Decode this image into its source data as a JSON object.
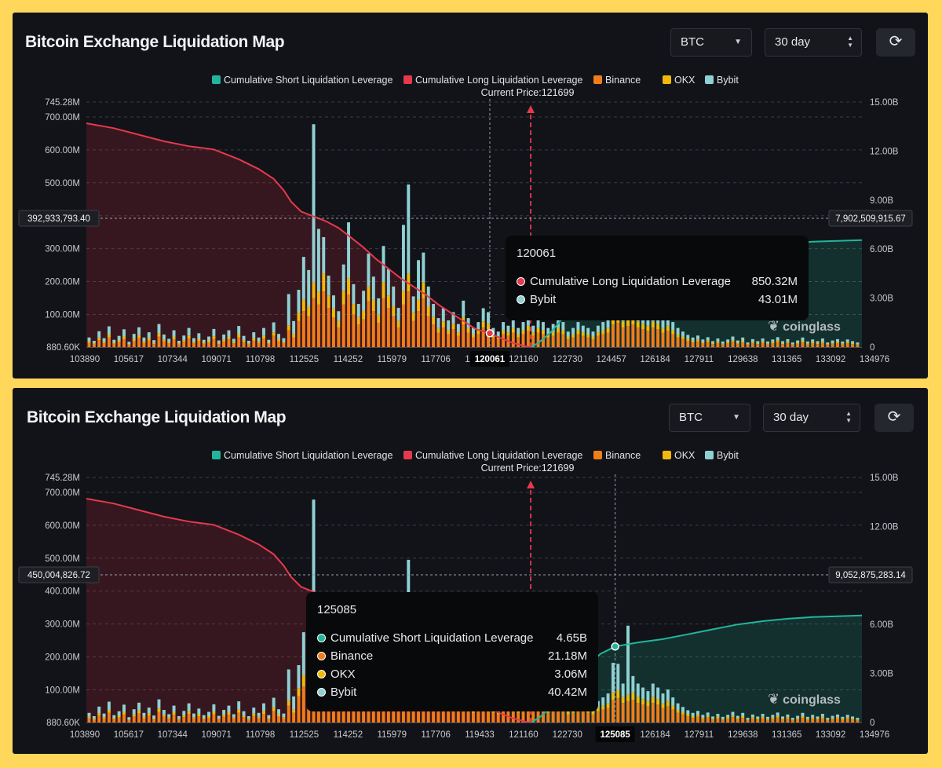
{
  "colors": {
    "short": "#22b59b",
    "long": "#e5394d",
    "binance": "#f07d1a",
    "okx": "#f0b90b",
    "bybit": "#8fd0d3",
    "axis_text": "#c7cad0",
    "grid": "#3a3d45",
    "price_line": "#e5394d"
  },
  "panels": [
    {
      "title": "Bitcoin Exchange Liquidation Map",
      "asset_select": "BTC",
      "period_select": "30 day",
      "refresh_icon": "refresh-icon",
      "current_price_label": "Current Price:121699",
      "hover_left_label": "392,933,793.40",
      "hover_right_label": "7,902,509,915.67",
      "hover_x_label": "120061",
      "brand": "coinglass",
      "tooltip": {
        "title": "120061",
        "rows": [
          {
            "label": "Cumulative Long Liquidation Leverage",
            "value": "850.32M",
            "color": "#e5394d"
          },
          {
            "label": "Bybit",
            "value": "43.01M",
            "color": "#8fd0d3"
          }
        ]
      }
    },
    {
      "title": "Bitcoin Exchange Liquidation Map",
      "asset_select": "BTC",
      "period_select": "30 day",
      "refresh_icon": "refresh-icon",
      "current_price_label": "Current Price:121699",
      "hover_left_label": "450,004,826.72",
      "hover_right_label": "9,052,875,283.14",
      "hover_x_label": "125085",
      "brand": "coinglass",
      "tooltip": {
        "title": "125085",
        "rows": [
          {
            "label": "Cumulative Short Liquidation Leverage",
            "value": "4.65B",
            "color": "#22b59b"
          },
          {
            "label": "Binance",
            "value": "21.18M",
            "color": "#f07d1a"
          },
          {
            "label": "OKX",
            "value": "3.06M",
            "color": "#f0b90b"
          },
          {
            "label": "Bybit",
            "value": "40.42M",
            "color": "#8fd0d3"
          }
        ]
      }
    }
  ],
  "chart_data": {
    "type": "bar",
    "title": "Bitcoin Exchange Liquidation Map",
    "legend": [
      {
        "name": "Cumulative Short Liquidation Leverage",
        "color": "#22b59b"
      },
      {
        "name": "Cumulative Long Liquidation Leverage",
        "color": "#e5394d"
      },
      {
        "name": "Binance",
        "color": "#f07d1a"
      },
      {
        "name": "OKX",
        "color": "#f0b90b"
      },
      {
        "name": "Bybit",
        "color": "#8fd0d3"
      }
    ],
    "legend_position": "top-center",
    "xlim": [
      103890,
      134976
    ],
    "x_ticks": [
      "103890",
      "105617",
      "107344",
      "109071",
      "110798",
      "112525",
      "114252",
      "115979",
      "117706",
      "119433",
      "121160",
      "122730",
      "124457",
      "126184",
      "127911",
      "129638",
      "131365",
      "133092",
      "134976"
    ],
    "left_axis": {
      "ylim": [
        880600,
        745280000
      ],
      "ticks": [
        {
          "value": 745280000,
          "label": "745.28M"
        },
        {
          "value": 700000000,
          "label": "700.00M"
        },
        {
          "value": 600000000,
          "label": "600.00M"
        },
        {
          "value": 500000000,
          "label": "500.00M"
        },
        {
          "value": 400000000,
          "label": "400.00M"
        },
        {
          "value": 300000000,
          "label": "300.00M"
        },
        {
          "value": 200000000,
          "label": "200.00M"
        },
        {
          "value": 100000000,
          "label": "100.00M"
        },
        {
          "value": 880600,
          "label": "880.60K"
        }
      ]
    },
    "right_axis": {
      "ylim": [
        0,
        15000000000
      ],
      "ticks": [
        {
          "value": 15000000000,
          "label": "15.00B"
        },
        {
          "value": 12000000000,
          "label": "12.00B"
        },
        {
          "value": 9000000000,
          "label": "9.00B"
        },
        {
          "value": 6000000000,
          "label": "6.00B"
        },
        {
          "value": 3000000000,
          "label": "3.00B"
        },
        {
          "value": 0,
          "label": "0"
        }
      ]
    },
    "current_price": 121699,
    "long_cumulative_B": {
      "x": [
        103890,
        105000,
        106000,
        107000,
        108000,
        109000,
        110000,
        110800,
        111400,
        111800,
        112100,
        112500,
        113000,
        113500,
        114000,
        114500,
        115000,
        115500,
        116000,
        116500,
        117000,
        117500,
        118000,
        118500,
        119000,
        119500,
        120061,
        120500,
        121000,
        121500,
        121699
      ],
      "y": [
        13.7,
        13.4,
        13.0,
        12.6,
        12.3,
        12.1,
        11.5,
        10.9,
        10.3,
        9.6,
        8.9,
        8.3,
        8.0,
        7.7,
        7.3,
        6.7,
        6.1,
        5.4,
        4.8,
        4.2,
        3.7,
        3.2,
        2.6,
        2.1,
        1.6,
        1.1,
        0.85,
        0.55,
        0.25,
        0.05,
        0
      ]
    },
    "short_cumulative_B": {
      "x": [
        121699,
        122000,
        122500,
        123000,
        123500,
        124000,
        124500,
        125085,
        126000,
        127000,
        128000,
        129000,
        130000,
        131000,
        132000,
        133000,
        134000,
        134976
      ],
      "y": [
        0,
        0.25,
        0.9,
        1.8,
        2.7,
        3.5,
        4.2,
        4.65,
        4.9,
        5.1,
        5.4,
        5.7,
        6.0,
        6.2,
        6.35,
        6.45,
        6.5,
        6.55
      ]
    },
    "bars": {
      "x_step": 200,
      "x_start": 104000,
      "binance_M": [
        14,
        9,
        22,
        13,
        30,
        11,
        16,
        25,
        8,
        19,
        28,
        14,
        21,
        10,
        33,
        18,
        12,
        24,
        9,
        17,
        27,
        13,
        20,
        11,
        15,
        26,
        10,
        18,
        24,
        12,
        30,
        16,
        9,
        21,
        14,
        27,
        11,
        35,
        19,
        13,
        52,
        30,
        80,
        110,
        95,
        150,
        130,
        170,
        120,
        90,
        60,
        130,
        160,
        100,
        70,
        85,
        140,
        110,
        75,
        150,
        120,
        95,
        60,
        130,
        170,
        80,
        110,
        150,
        95,
        70,
        45,
        60,
        40,
        55,
        35,
        70,
        45,
        30,
        40,
        60,
        55,
        30,
        25,
        40,
        35,
        45,
        30,
        40,
        50,
        35,
        45,
        40,
        30,
        35,
        45,
        40,
        25,
        30,
        40,
        35,
        30,
        25,
        35,
        40,
        45,
        70,
        75,
        60,
        65,
        70,
        60,
        55,
        50,
        60,
        55,
        45,
        50,
        40,
        30,
        25,
        20,
        15,
        18,
        12,
        16,
        10,
        14,
        9,
        12,
        17,
        11,
        15,
        8,
        13,
        10,
        14,
        9,
        12,
        16,
        10,
        13,
        8,
        11,
        15,
        9,
        12,
        10,
        14,
        8,
        11,
        13,
        9,
        12,
        10,
        8
      ],
      "okx_M": [
        4,
        3,
        7,
        4,
        9,
        3,
        5,
        8,
        2,
        6,
        9,
        4,
        7,
        3,
        10,
        6,
        4,
        8,
        3,
        5,
        9,
        4,
        6,
        3,
        5,
        8,
        3,
        6,
        8,
        4,
        10,
        5,
        3,
        7,
        4,
        9,
        3,
        11,
        6,
        4,
        15,
        10,
        25,
        35,
        30,
        48,
        40,
        55,
        38,
        28,
        20,
        42,
        50,
        32,
        22,
        27,
        45,
        35,
        24,
        48,
        38,
        30,
        20,
        42,
        55,
        25,
        35,
        48,
        30,
        22,
        14,
        19,
        12,
        17,
        11,
        22,
        14,
        9,
        12,
        19,
        17,
        9,
        8,
        12,
        11,
        14,
        9,
        12,
        16,
        11,
        14,
        12,
        9,
        11,
        14,
        12,
        8,
        9,
        12,
        11,
        9,
        8,
        11,
        12,
        14,
        22,
        24,
        19,
        20,
        22,
        19,
        17,
        16,
        19,
        17,
        14,
        16,
        12,
        9,
        8,
        6,
        5,
        6,
        4,
        5,
        3,
        4,
        3,
        4,
        5,
        3,
        5,
        2,
        4,
        3,
        4,
        3,
        4,
        5,
        3,
        4,
        2,
        3,
        5,
        3,
        4,
        3,
        4,
        2,
        3,
        4,
        3,
        4,
        3,
        2
      ],
      "bybit_M": [
        12,
        8,
        20,
        11,
        25,
        9,
        14,
        22,
        7,
        16,
        24,
        12,
        18,
        9,
        28,
        15,
        10,
        20,
        8,
        14,
        23,
        11,
        17,
        9,
        13,
        22,
        8,
        15,
        20,
        10,
        25,
        14,
        8,
        18,
        12,
        23,
        9,
        30,
        16,
        11,
        95,
        40,
        70,
        130,
        110,
        480,
        190,
        110,
        60,
        40,
        30,
        80,
        170,
        60,
        40,
        60,
        100,
        70,
        50,
        110,
        80,
        60,
        40,
        200,
        270,
        50,
        120,
        90,
        60,
        40,
        30,
        40,
        30,
        35,
        25,
        50,
        30,
        20,
        25,
        40,
        35,
        20,
        15,
        25,
        20,
        30,
        20,
        25,
        35,
        20,
        30,
        25,
        20,
        25,
        30,
        25,
        15,
        20,
        25,
        20,
        20,
        15,
        20,
        25,
        30,
        90,
        80,
        40,
        210,
        50,
        40,
        35,
        30,
        40,
        35,
        30,
        35,
        25,
        20,
        15,
        12,
        10,
        12,
        8,
        10,
        6,
        9,
        6,
        8,
        11,
        7,
        10,
        5,
        8,
        6,
        9,
        6,
        8,
        10,
        6,
        8,
        5,
        7,
        10,
        6,
        8,
        6,
        9,
        5,
        7,
        8,
        6,
        8,
        6,
        5
      ]
    }
  }
}
